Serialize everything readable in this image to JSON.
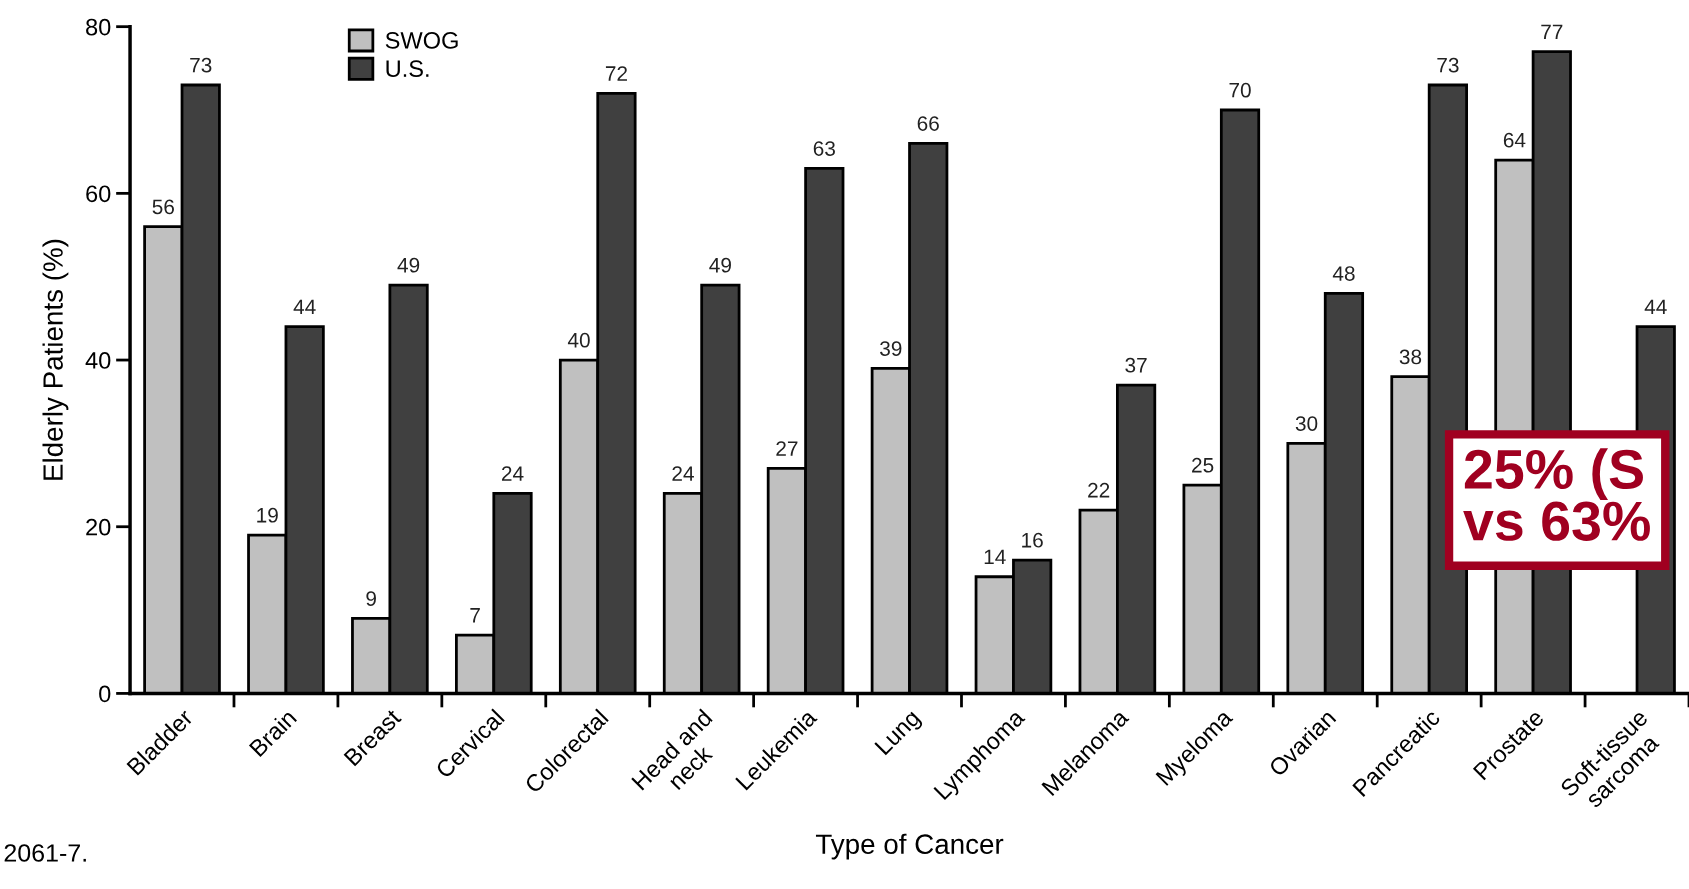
{
  "chart_data": {
    "type": "bar",
    "xlabel": "Type of Cancer",
    "ylabel": "Elderly Patients (%)",
    "categories": [
      "Bladder",
      "Brain",
      "Breast",
      "Cervical",
      "Colorectal",
      "Head and\nneck",
      "Leukemia",
      "Lung",
      "Lymphoma",
      "Melanoma",
      "Myeloma",
      "Ovarian",
      "Pancreatic",
      "Prostate",
      "Soft-tissue\nsarcoma"
    ],
    "series": [
      {
        "name": "SWOG",
        "color": "#c0c0c0",
        "values": [
          56,
          19,
          9,
          7,
          40,
          24,
          27,
          39,
          14,
          22,
          25,
          30,
          38,
          64,
          null
        ]
      },
      {
        "name": "U.S.",
        "color": "#404040",
        "values": [
          73,
          44,
          49,
          24,
          72,
          49,
          63,
          66,
          16,
          37,
          70,
          48,
          73,
          77,
          44
        ]
      }
    ],
    "ylim": [
      0,
      80
    ],
    "yticks": [
      0,
      20,
      40,
      60,
      80
    ],
    "data_labels": true,
    "grid": false,
    "legend": "top left",
    "annotations": [
      "25% (S\nvs 63%",
      "2061-7."
    ]
  }
}
